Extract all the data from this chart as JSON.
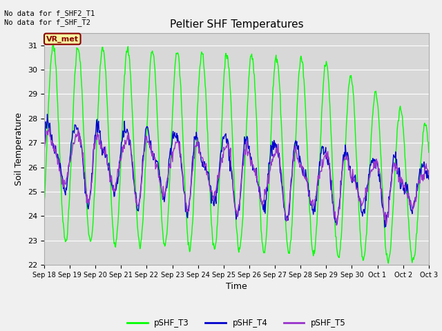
{
  "title": "Peltier SHF Temperatures",
  "xlabel": "Time",
  "ylabel": "Soil Temperature",
  "ylim": [
    22.0,
    31.5
  ],
  "yticks": [
    22.0,
    23.0,
    24.0,
    25.0,
    26.0,
    27.0,
    28.0,
    29.0,
    30.0,
    31.0
  ],
  "annotation_text": "No data for f_SHF2_T1\nNo data for f_SHF_T2",
  "vr_met_label": "VR_met",
  "x_tick_labels": [
    "Sep 18",
    "Sep 19",
    "Sep 20",
    "Sep 21",
    "Sep 22",
    "Sep 23",
    "Sep 24",
    "Sep 25",
    "Sep 26",
    "Sep 27",
    "Sep 28",
    "Sep 29",
    "Sep 30",
    "Oct 1",
    "Oct 2",
    "Oct 3"
  ],
  "legend_labels": [
    "pSHF_T3",
    "pSHF_T4",
    "pSHF_T5"
  ],
  "line_colors": [
    "#00ff00",
    "#0000cd",
    "#9932cc"
  ],
  "fig_bg_color": "#f0f0f0",
  "plot_bg_color": "#d8d8d8",
  "grid_color": "#ffffff",
  "n_days": 15.5,
  "figsize": [
    6.4,
    4.8
  ],
  "dpi": 100
}
